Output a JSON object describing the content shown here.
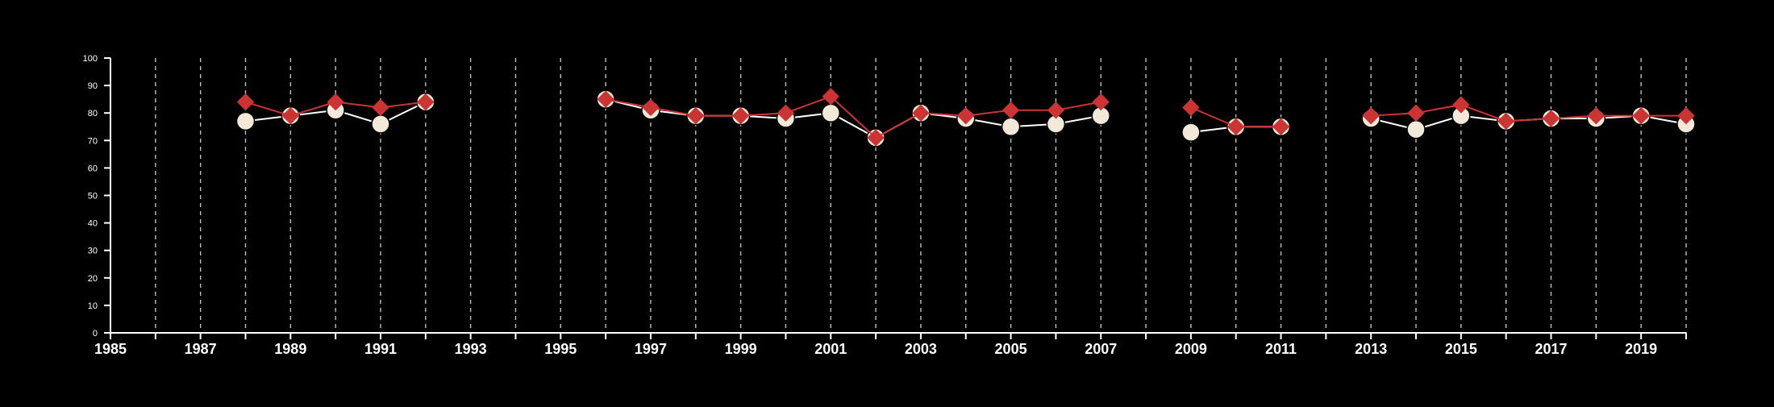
{
  "chart_data": {
    "type": "line",
    "title": "",
    "xlabel": "",
    "ylabel": "",
    "x_range": [
      1985,
      2020
    ],
    "ylim": [
      0,
      100
    ],
    "y_ticks": [
      0,
      10,
      20,
      30,
      40,
      50,
      60,
      70,
      80,
      90,
      100
    ],
    "x_ticks": [
      1985,
      1987,
      1989,
      1991,
      1993,
      1995,
      1997,
      1999,
      2001,
      2003,
      2005,
      2007,
      2009,
      2011,
      2013,
      2015,
      2017,
      2019
    ],
    "vertical_dashed_grid_years": [
      1986,
      1987,
      1988,
      1989,
      1990,
      1991,
      1992,
      1993,
      1994,
      1995,
      1996,
      1997,
      1998,
      1999,
      2000,
      2001,
      2002,
      2003,
      2004,
      2005,
      2006,
      2007,
      2008,
      2009,
      2010,
      2011,
      2012,
      2013,
      2014,
      2015,
      2016,
      2017,
      2018,
      2019,
      2020
    ],
    "background": "#000000",
    "axis_color": "#ffffff",
    "grid": "vertical dashed",
    "legend": "none",
    "series": [
      {
        "marker": "circle",
        "color": "#f3e9d8",
        "line_color": "#ffffff",
        "points": [
          [
            1988,
            77
          ],
          [
            1989,
            79
          ],
          [
            1990,
            81
          ],
          [
            1991,
            76
          ],
          [
            1992,
            84
          ],
          null,
          [
            1996,
            85
          ],
          [
            1997,
            81
          ],
          [
            1998,
            79
          ],
          [
            1999,
            79
          ],
          [
            2000,
            78
          ],
          [
            2001,
            80
          ],
          [
            2002,
            71
          ],
          [
            2003,
            80
          ],
          [
            2004,
            78
          ],
          [
            2005,
            75
          ],
          [
            2006,
            76
          ],
          [
            2007,
            79
          ],
          null,
          [
            2009,
            73
          ],
          [
            2010,
            75
          ],
          [
            2011,
            75
          ],
          null,
          [
            2013,
            78
          ],
          [
            2014,
            74
          ],
          [
            2015,
            79
          ],
          [
            2016,
            77
          ],
          [
            2017,
            78
          ],
          [
            2018,
            78
          ],
          [
            2019,
            79
          ],
          [
            2020,
            76
          ]
        ]
      },
      {
        "marker": "diamond",
        "color": "#cc3333",
        "line_color": "#cc3333",
        "points": [
          [
            1988,
            84
          ],
          [
            1989,
            79
          ],
          [
            1990,
            84
          ],
          [
            1991,
            82
          ],
          [
            1992,
            84
          ],
          null,
          [
            1996,
            85
          ],
          [
            1997,
            82
          ],
          [
            1998,
            79
          ],
          [
            1999,
            79
          ],
          [
            2000,
            80
          ],
          [
            2001,
            86
          ],
          [
            2002,
            71
          ],
          [
            2003,
            80
          ],
          [
            2004,
            79
          ],
          [
            2005,
            81
          ],
          [
            2006,
            81
          ],
          [
            2007,
            84
          ],
          null,
          [
            2009,
            82
          ],
          [
            2010,
            75
          ],
          [
            2011,
            75
          ],
          null,
          [
            2013,
            79
          ],
          [
            2014,
            80
          ],
          [
            2015,
            83
          ],
          [
            2016,
            77
          ],
          [
            2017,
            78
          ],
          [
            2018,
            79
          ],
          [
            2019,
            79
          ],
          [
            2020,
            79
          ]
        ]
      }
    ]
  }
}
